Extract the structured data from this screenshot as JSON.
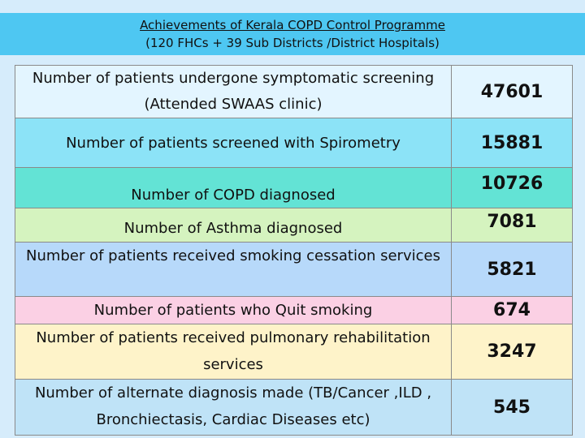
{
  "header": {
    "title": "Achievements of  Kerala COPD Control Programme",
    "subtitle": "(120 FHCs + 39 Sub Districts /District Hospitals)"
  },
  "rows": [
    {
      "label": "Number  of patients undergone symptomatic screening (Attended SWAAS clinic)",
      "value": "47601"
    },
    {
      "label": "Number of patients screened with Spirometry",
      "value": "15881"
    },
    {
      "label": "Number of COPD diagnosed",
      "value": "10726"
    },
    {
      "label": "Number of Asthma diagnosed",
      "value": "7081"
    },
    {
      "label": "Number of patients  received smoking cessation services",
      "value": "5821"
    },
    {
      "label": "Number of patients who Quit smoking",
      "value": "674"
    },
    {
      "label": "Number of patients received pulmonary rehabilitation services",
      "value": "3247"
    },
    {
      "label": "Number of alternate diagnosis made  (TB/Cancer ,ILD , Bronchiectasis, Cardiac Diseases etc)",
      "value": "545"
    }
  ]
}
